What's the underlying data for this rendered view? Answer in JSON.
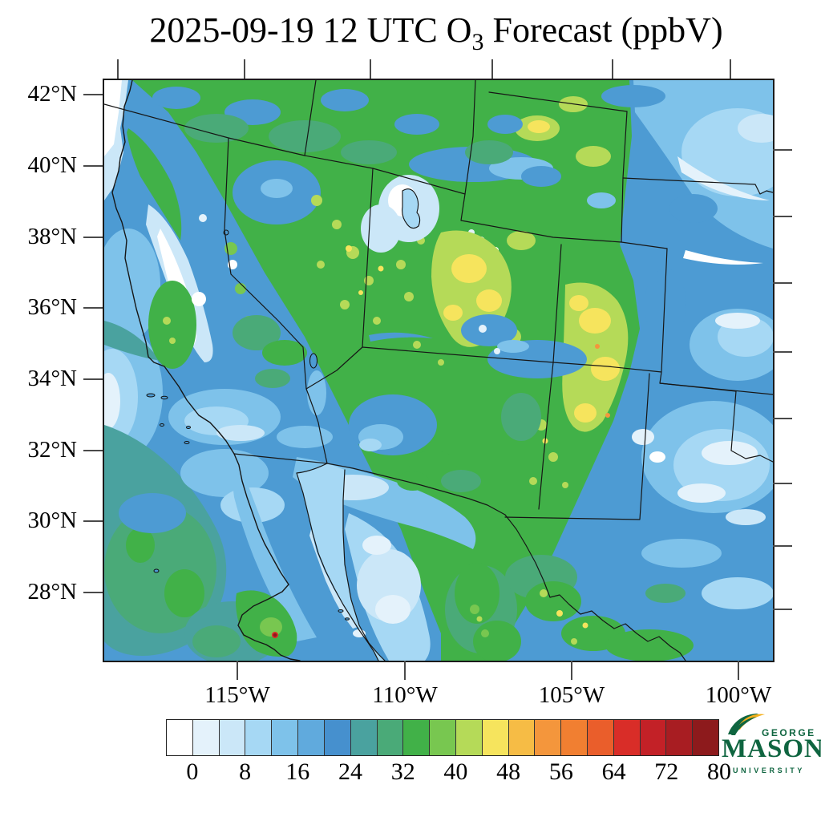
{
  "title": {
    "prefix": "2025-09-19 12 UTC O",
    "sub": "3",
    "suffix": " Forecast (ppbV)"
  },
  "map_axes": {
    "lat_labels": [
      "42°N",
      "40°N",
      "38°N",
      "36°N",
      "34°N",
      "32°N",
      "30°N",
      "28°N"
    ],
    "lon_labels": [
      "115°W",
      "110°W",
      "105°W",
      "100°W"
    ]
  },
  "colorbar": {
    "tick_labels": [
      "0",
      "8",
      "16",
      "24",
      "32",
      "40",
      "48",
      "56",
      "64",
      "72",
      "80"
    ],
    "colors": [
      "#FFFFFF",
      "#E4F2FB",
      "#CBE7F8",
      "#A6D8F4",
      "#7EC2EA",
      "#60AADD",
      "#4690CE",
      "#4AA29F",
      "#4AAA78",
      "#41B148",
      "#78C750",
      "#B5DA58",
      "#F6E45D",
      "#F6BC45",
      "#F4963C",
      "#F17F31",
      "#EA5E2B",
      "#D92D28",
      "#C32127",
      "#A81D22",
      "#8D1A1C"
    ],
    "unit": "ppbV"
  },
  "logo": {
    "top": "GEORGE",
    "name": "MASON",
    "bottom": "UNIVERSITY"
  },
  "chart_data": {
    "type": "heatmap",
    "title": "2025-09-19 12 UTC O3 Forecast (ppbV)",
    "variable": "ozone mixing ratio",
    "unit": "ppbV",
    "scale_ticks": [
      0,
      8,
      16,
      24,
      32,
      40,
      48,
      56,
      64,
      72,
      80
    ],
    "scale_interval": 4,
    "lat_ticks_deg_n": [
      42,
      40,
      38,
      36,
      34,
      32,
      30,
      28
    ],
    "lon_ticks_deg_w": [
      115,
      110,
      105,
      100
    ],
    "legend_position": "bottom",
    "summary": "Filled contour map over the southwestern US and northern Mexico; ocean and plains 12-28 ppbV (blues/white), mountain west 32-40 ppbV (greens), highest 40-50 ppbV (yellow) over central Utah and the Colorado Rockies"
  }
}
